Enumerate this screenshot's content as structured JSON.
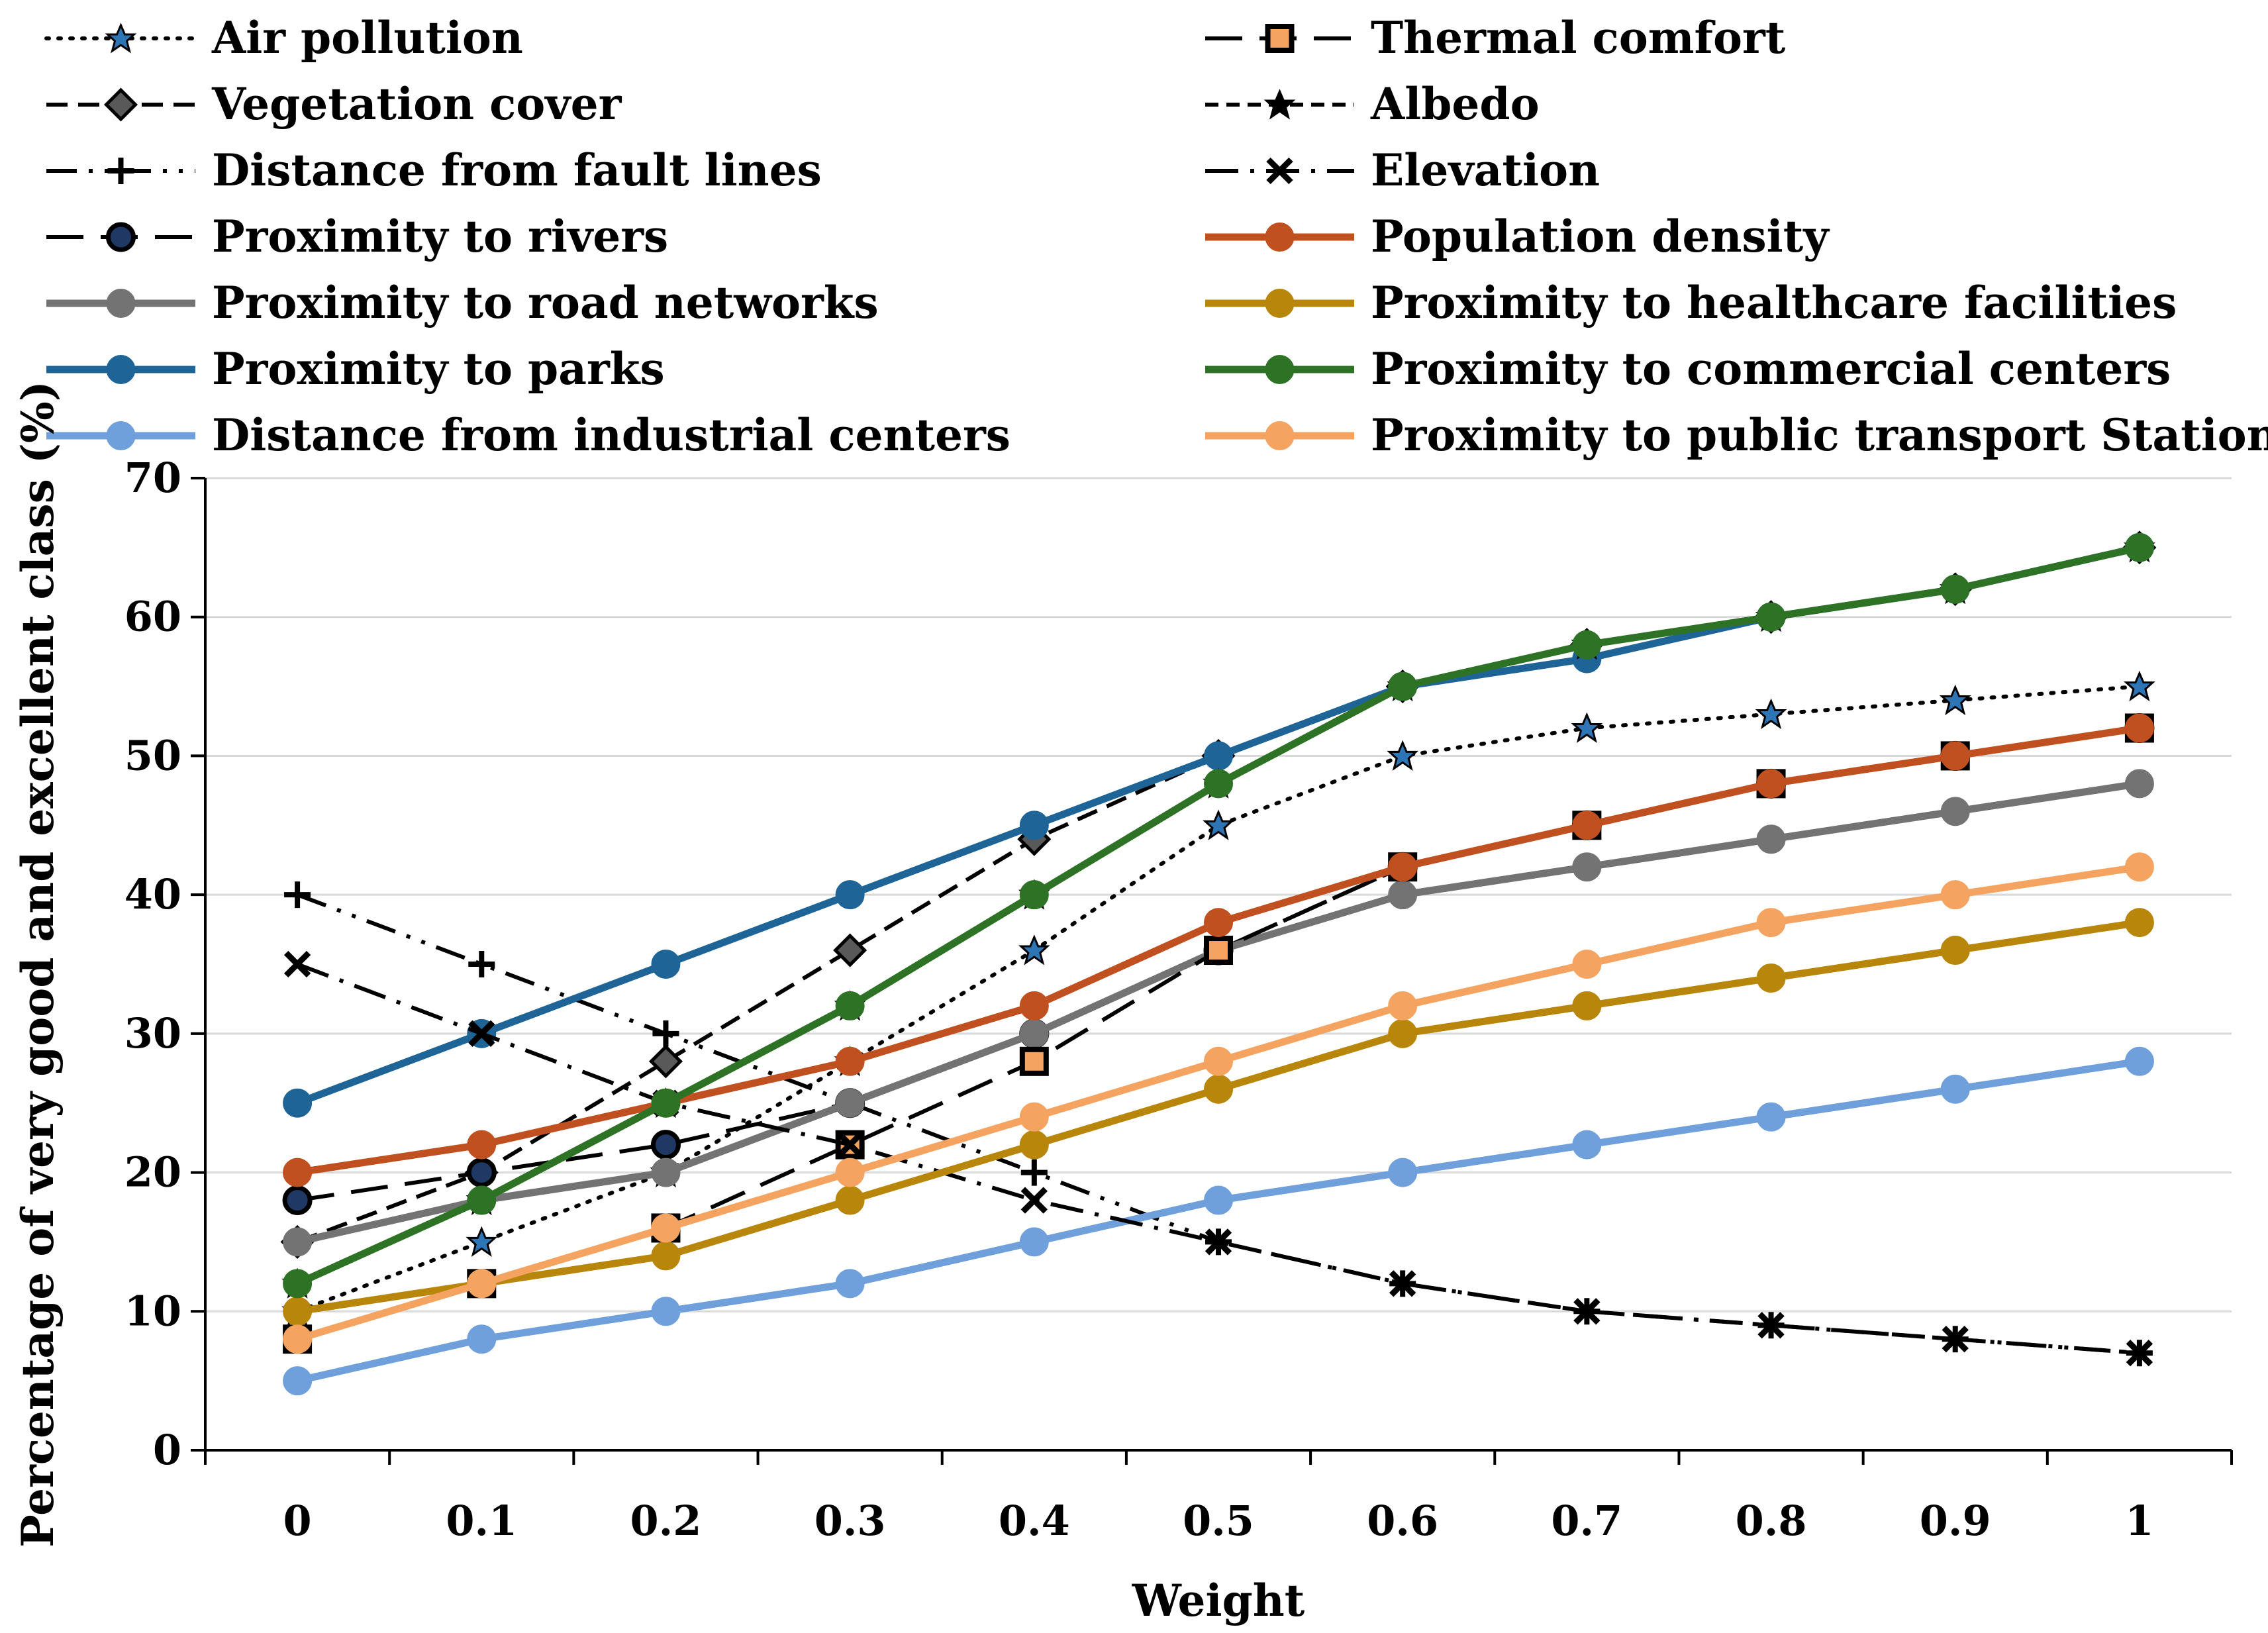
{
  "chart_data": {
    "type": "line",
    "title": "",
    "xlabel": "Weight",
    "ylabel": "Percentage of very good and excellent class (%)",
    "categories": [
      "0",
      "0.1",
      "0.2",
      "0.3",
      "0.4",
      "0.5",
      "0.6",
      "0.7",
      "0.8",
      "0.9",
      "1"
    ],
    "ylim": [
      0,
      70
    ],
    "yticks": [
      "0",
      "10",
      "20",
      "30",
      "40",
      "50",
      "60",
      "70"
    ],
    "grid": true,
    "legend_position": "top",
    "series": [
      {
        "name": "Air pollution",
        "color": "#000000",
        "dash": "dot",
        "marker": "star-blue",
        "marker_color": "#2e75b6",
        "values": [
          10,
          15,
          20,
          28,
          36,
          45,
          50,
          52,
          53,
          54,
          55
        ]
      },
      {
        "name": "Vegetation cover",
        "color": "#000000",
        "dash": "dash",
        "marker": "diamond",
        "marker_color": "#595959",
        "values": [
          15,
          20,
          28,
          36,
          44,
          50,
          55,
          58,
          60,
          62,
          65
        ]
      },
      {
        "name": "Distance from fault lines",
        "color": "#000000",
        "dash": "dashdotdot",
        "marker": "plus",
        "marker_color": "#000000",
        "values": [
          40,
          35,
          30,
          25,
          20,
          15,
          12,
          10,
          9,
          8,
          7
        ]
      },
      {
        "name": "Proximity to rivers",
        "color": "#000000",
        "dash": "longdash",
        "marker": "circle-dark",
        "marker_color": "#1f3864",
        "values": [
          18,
          20,
          22,
          25,
          30,
          36,
          42,
          45,
          48,
          50,
          52
        ]
      },
      {
        "name": "Proximity to road networks",
        "color": "#737373",
        "dash": "solid",
        "marker": "circle",
        "marker_color": "#737373",
        "values": [
          15,
          18,
          20,
          25,
          30,
          36,
          40,
          42,
          44,
          46,
          48
        ]
      },
      {
        "name": "Proximity to parks",
        "color": "#1f6496",
        "dash": "solid",
        "marker": "circle",
        "marker_color": "#1f6496",
        "values": [
          25,
          30,
          35,
          40,
          45,
          50,
          55,
          57,
          60,
          62,
          65
        ]
      },
      {
        "name": "Distance from industrial centers",
        "color": "#6fa0dc",
        "dash": "solid",
        "marker": "circle",
        "marker_color": "#6fa0dc",
        "values": [
          5,
          8,
          10,
          12,
          15,
          18,
          20,
          22,
          24,
          26,
          28
        ]
      },
      {
        "name": "Thermal comfort",
        "color": "#000000",
        "dash": "longdash",
        "marker": "square-orange",
        "marker_color": "#f4a460",
        "values": [
          8,
          12,
          16,
          22,
          28,
          36,
          42,
          45,
          48,
          50,
          52
        ]
      },
      {
        "name": "Albedo",
        "color": "#000000",
        "dash": "shortdash",
        "marker": "star-dark",
        "marker_color": "#000000",
        "values": [
          12,
          18,
          25,
          32,
          40,
          48,
          55,
          58,
          60,
          62,
          65
        ]
      },
      {
        "name": "Elevation",
        "color": "#000000",
        "dash": "dashdot",
        "marker": "x",
        "marker_color": "#000000",
        "values": [
          35,
          30,
          25,
          22,
          18,
          15,
          12,
          10,
          9,
          8,
          7
        ]
      },
      {
        "name": "Population density",
        "color": "#c0501f",
        "dash": "solid",
        "marker": "circle",
        "marker_color": "#c0501f",
        "values": [
          20,
          22,
          25,
          28,
          32,
          38,
          42,
          45,
          48,
          50,
          52
        ]
      },
      {
        "name": "Proximity to healthcare facilities",
        "color": "#b8860b",
        "dash": "solid",
        "marker": "circle",
        "marker_color": "#b8860b",
        "values": [
          10,
          12,
          14,
          18,
          22,
          26,
          30,
          32,
          34,
          36,
          38
        ]
      },
      {
        "name": "Proximity to commercial centers",
        "color": "#2e7226",
        "dash": "solid",
        "marker": "circle",
        "marker_color": "#2e7226",
        "values": [
          12,
          18,
          25,
          32,
          40,
          48,
          55,
          58,
          60,
          62,
          65
        ]
      },
      {
        "name": "Proximity to public transport Stations",
        "color": "#f4a460",
        "dash": "solid",
        "marker": "circle",
        "marker_color": "#f4a460",
        "values": [
          8,
          12,
          16,
          20,
          24,
          28,
          32,
          35,
          38,
          40,
          42
        ]
      }
    ]
  }
}
